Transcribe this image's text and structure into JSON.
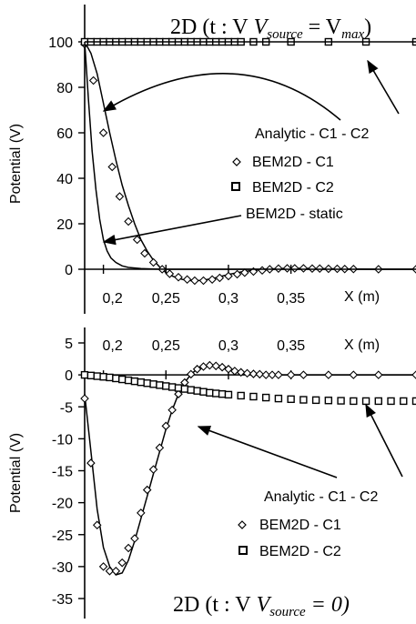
{
  "chart_data": [
    {
      "type": "line",
      "title": "2D (t : V",
      "title_sub1": "source",
      "title_mid": " = V",
      "title_sub2": "max",
      "title_end": ")",
      "ylabel": "Potential (V)",
      "xlabel": "X (m)",
      "xlim": [
        0.185,
        0.45
      ],
      "ylim": [
        -10,
        110
      ],
      "xticks": [
        0.2,
        0.25,
        0.3,
        0.35
      ],
      "xtick_labels": [
        "0,2",
        "0,25",
        "0,3",
        "0,35"
      ],
      "yticks": [
        0,
        20,
        40,
        60,
        80,
        100
      ],
      "ytick_labels": [
        "0",
        "20",
        "40",
        "60",
        "80",
        "100"
      ],
      "grid": false,
      "series": [
        {
          "name": "Analytic - C1 - C2",
          "style": "line",
          "x": [
            0.185,
            0.19,
            0.195,
            0.2,
            0.205,
            0.21,
            0.215,
            0.22,
            0.225,
            0.23,
            0.235,
            0.24,
            0.245,
            0.25,
            0.255,
            0.26,
            0.265,
            0.27,
            0.275,
            0.28,
            0.285,
            0.29,
            0.295,
            0.3,
            0.305,
            0.31,
            0.32,
            0.33,
            0.34,
            0.35,
            0.36,
            0.37,
            0.38,
            0.4,
            0.42,
            0.45
          ],
          "y": [
            100,
            95,
            86,
            73,
            60,
            48,
            37,
            28,
            20,
            13,
            8,
            4,
            1,
            -1.5,
            -3,
            -4,
            -4.7,
            -5,
            -5,
            -4.8,
            -4.3,
            -3.7,
            -3,
            -2.3,
            -1.7,
            -1.2,
            -0.5,
            0,
            0.3,
            0.4,
            0.4,
            0.3,
            0.2,
            0.1,
            0,
            0
          ]
        },
        {
          "name": "BEM2D - C1",
          "style": "diamond",
          "x": [
            0.185,
            0.192,
            0.2,
            0.207,
            0.213,
            0.22,
            0.227,
            0.233,
            0.24,
            0.247,
            0.253,
            0.26,
            0.267,
            0.273,
            0.28,
            0.287,
            0.293,
            0.3,
            0.307,
            0.313,
            0.32,
            0.327,
            0.333,
            0.34,
            0.347,
            0.353,
            0.36,
            0.367,
            0.373,
            0.38,
            0.387,
            0.393,
            0.4,
            0.42,
            0.45
          ],
          "y": [
            99,
            83,
            60,
            45,
            32,
            21,
            13,
            7,
            3,
            0,
            -2,
            -3.5,
            -4.5,
            -5,
            -5,
            -4.5,
            -3.8,
            -3,
            -2.2,
            -1.5,
            -1,
            -0.5,
            0,
            0.3,
            0.4,
            0.4,
            0.4,
            0.3,
            0.3,
            0.2,
            0.2,
            0.1,
            0.1,
            0,
            0
          ]
        },
        {
          "name": "BEM2D - C2",
          "style": "square",
          "x": [
            0.185,
            0.19,
            0.195,
            0.2,
            0.205,
            0.21,
            0.215,
            0.22,
            0.225,
            0.23,
            0.235,
            0.24,
            0.245,
            0.25,
            0.255,
            0.26,
            0.265,
            0.27,
            0.275,
            0.28,
            0.285,
            0.29,
            0.295,
            0.3,
            0.305,
            0.31,
            0.32,
            0.33,
            0.35,
            0.38,
            0.41,
            0.45
          ],
          "y": [
            100,
            100,
            100,
            100,
            100,
            100,
            100,
            100,
            100,
            100,
            100,
            100,
            100,
            100,
            100,
            100,
            100,
            100,
            100,
            100,
            100,
            100,
            100,
            100,
            100,
            100,
            100,
            100,
            100,
            100,
            100,
            100
          ]
        },
        {
          "name": "BEM2D - static",
          "style": "line",
          "x": [
            0.185,
            0.188,
            0.191,
            0.194,
            0.197,
            0.2,
            0.203,
            0.206,
            0.21,
            0.215,
            0.22,
            0.23,
            0.24,
            0.25,
            0.3,
            0.45
          ],
          "y": [
            100,
            75,
            52,
            35,
            22,
            13,
            8,
            5,
            3,
            1.5,
            0.8,
            0.3,
            0.1,
            0,
            0,
            0
          ]
        },
        {
          "name": "",
          "style": "line",
          "x": [
            0.185,
            0.45
          ],
          "y": [
            100,
            100
          ]
        }
      ]
    },
    {
      "type": "line",
      "title": "2D (t : V",
      "title_sub1": "source",
      "title_end": " = 0)",
      "ylabel": "Potential (V)",
      "xlabel": "X (m)",
      "xlim": [
        0.185,
        0.45
      ],
      "ylim": [
        -35,
        5
      ],
      "xticks": [
        0.2,
        0.25,
        0.3,
        0.35
      ],
      "xtick_labels": [
        "0,2",
        "0,25",
        "0,3",
        "0,35"
      ],
      "yticks": [
        5,
        0,
        -5,
        -10,
        -15,
        -20,
        -25,
        -30,
        -35
      ],
      "ytick_labels": [
        "5",
        "0",
        "-5",
        "-10",
        "-15",
        "-20",
        "-25",
        "-30",
        "-35"
      ],
      "grid": false,
      "series": [
        {
          "name": "Analytic - C1 - C2",
          "style": "line",
          "x": [
            0.185,
            0.19,
            0.195,
            0.2,
            0.205,
            0.21,
            0.215,
            0.22,
            0.225,
            0.23,
            0.235,
            0.24,
            0.245,
            0.25,
            0.255,
            0.26,
            0.265,
            0.27,
            0.275,
            0.28,
            0.285,
            0.29,
            0.295,
            0.3,
            0.305,
            0.31,
            0.315,
            0.32,
            0.325,
            0.33,
            0.335,
            0.34,
            0.345,
            0.35,
            0.36,
            0.37,
            0.38,
            0.39,
            0.4,
            0.42,
            0.45
          ],
          "y": [
            -3,
            -12,
            -21,
            -27,
            -30,
            -31.3,
            -31,
            -29,
            -26,
            -22.5,
            -19,
            -15.5,
            -12,
            -8.5,
            -5.5,
            -3,
            -1.2,
            0.1,
            0.9,
            1.3,
            1.5,
            1.4,
            1.2,
            0.9,
            0.6,
            0.4,
            0.25,
            0.15,
            0.1,
            0,
            0,
            0,
            0,
            0,
            0,
            0,
            0,
            0,
            0,
            0,
            0
          ]
        },
        {
          "name": "BEM2D - C1",
          "style": "diamond",
          "x": [
            0.185,
            0.19,
            0.195,
            0.2,
            0.205,
            0.21,
            0.215,
            0.22,
            0.225,
            0.23,
            0.235,
            0.24,
            0.245,
            0.25,
            0.255,
            0.26,
            0.265,
            0.27,
            0.275,
            0.28,
            0.285,
            0.29,
            0.295,
            0.3,
            0.305,
            0.31,
            0.315,
            0.32,
            0.325,
            0.33,
            0.335,
            0.34,
            0.35,
            0.36,
            0.38,
            0.4,
            0.42,
            0.45
          ],
          "y": [
            -3.7,
            -13.8,
            -23.5,
            -30,
            -30.7,
            -30.7,
            -29.4,
            -27.1,
            -25.6,
            -21.6,
            -18,
            -14.8,
            -11.4,
            -8,
            -5.5,
            -3,
            -1.2,
            0.1,
            0.9,
            1.3,
            1.5,
            1.4,
            1.2,
            0.9,
            0.6,
            0.4,
            0.25,
            0.15,
            0.1,
            0,
            0,
            0,
            0,
            0,
            0,
            0,
            0,
            0
          ]
        },
        {
          "name": "BEM2D - C2",
          "style": "square",
          "x": [
            0.185,
            0.19,
            0.195,
            0.2,
            0.205,
            0.21,
            0.215,
            0.22,
            0.225,
            0.23,
            0.235,
            0.24,
            0.245,
            0.25,
            0.255,
            0.26,
            0.265,
            0.27,
            0.275,
            0.28,
            0.285,
            0.29,
            0.295,
            0.3,
            0.31,
            0.32,
            0.33,
            0.34,
            0.35,
            0.36,
            0.37,
            0.38,
            0.39,
            0.4,
            0.41,
            0.42,
            0.43,
            0.44,
            0.45
          ],
          "y": [
            0,
            -0.1,
            -0.2,
            -0.3,
            -0.4,
            -0.55,
            -0.7,
            -0.85,
            -1,
            -1.15,
            -1.3,
            -1.45,
            -1.6,
            -1.75,
            -1.9,
            -2.05,
            -2.2,
            -2.35,
            -2.5,
            -2.65,
            -2.8,
            -2.9,
            -3,
            -3.1,
            -3.25,
            -3.4,
            -3.55,
            -3.7,
            -3.8,
            -3.9,
            -3.95,
            -4,
            -4.05,
            -4.1,
            -4.1,
            -4.1,
            -4.1,
            -4.1,
            -4.1
          ]
        }
      ]
    }
  ]
}
